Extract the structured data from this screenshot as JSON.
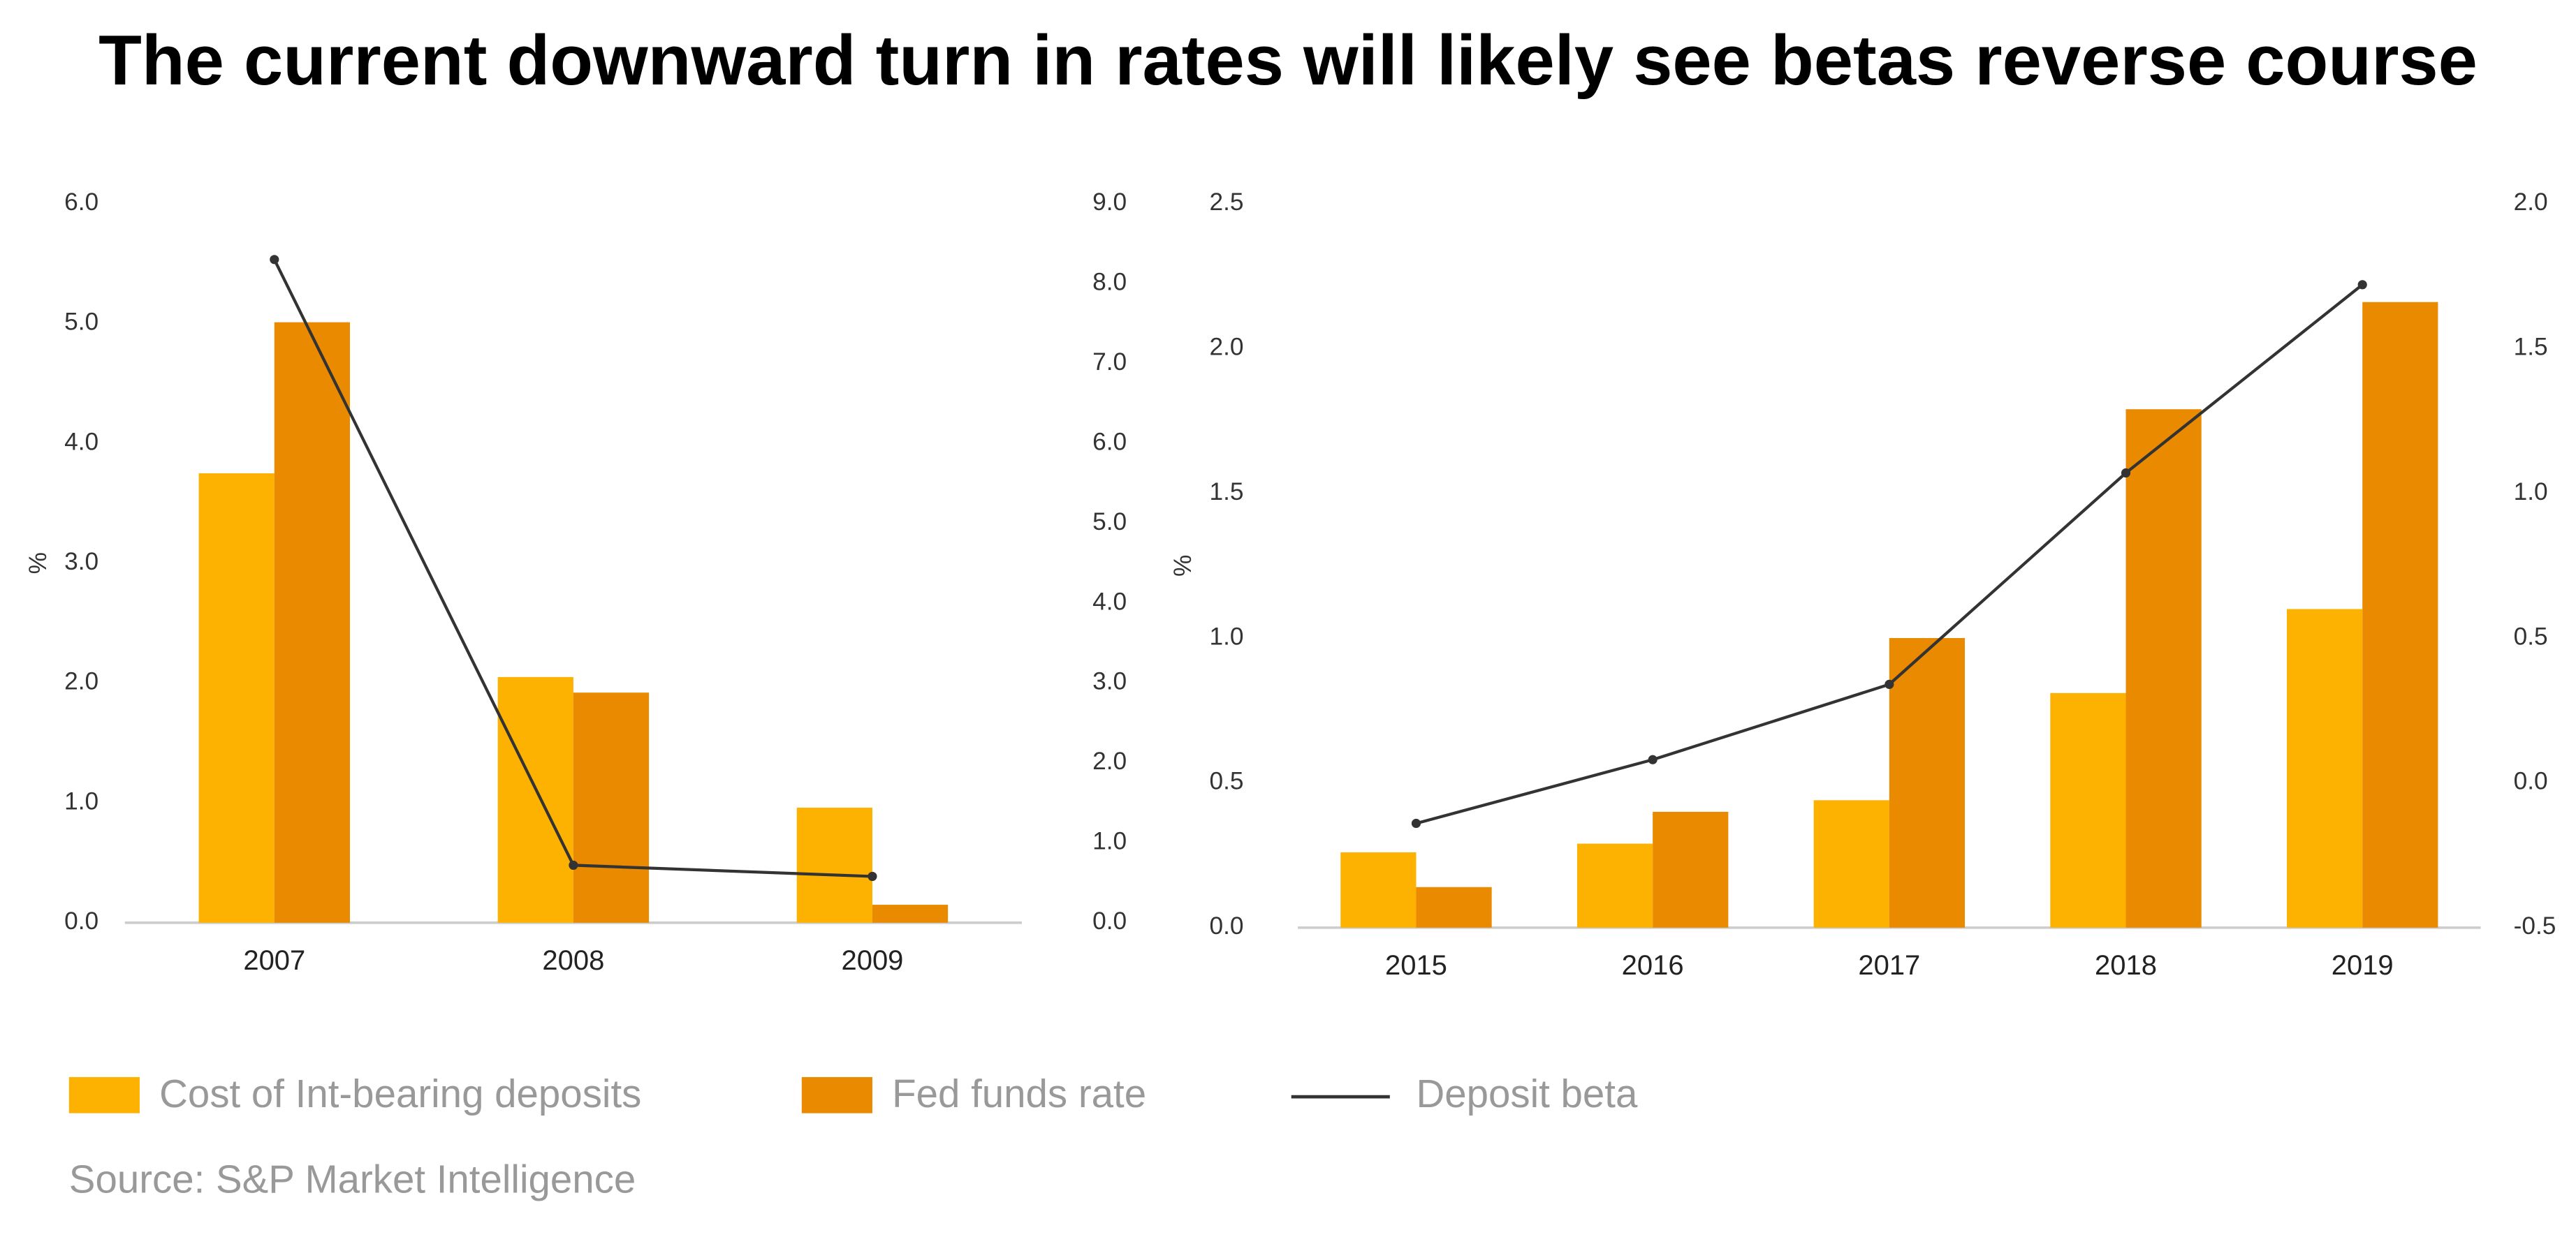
{
  "title": "The current downward turn in rates will likely see betas reverse course",
  "source": "Source: S&P Market Intelligence",
  "chart_data": [
    {
      "type": "bar-line",
      "y_label": "%",
      "categories": [
        "2007",
        "2008",
        "2009"
      ],
      "ylim": [
        0,
        6
      ],
      "yticks": [
        {
          "value": 0,
          "label": "0.0"
        },
        {
          "value": 1,
          "label": "1.0"
        },
        {
          "value": 2,
          "label": "2.0"
        },
        {
          "value": 3,
          "label": "3.0"
        },
        {
          "value": 4,
          "label": "4.0"
        },
        {
          "value": 5,
          "label": "5.0"
        },
        {
          "value": 6,
          "label": "6.0"
        }
      ],
      "y2lim": [
        0,
        9
      ],
      "y2ticks": [
        {
          "value": 0,
          "label": "0.0"
        },
        {
          "value": 1,
          "label": "1.0"
        },
        {
          "value": 2,
          "label": "2.0"
        },
        {
          "value": 3,
          "label": "3.0"
        },
        {
          "value": 4,
          "label": "4.0"
        },
        {
          "value": 5,
          "label": "5.0"
        },
        {
          "value": 6,
          "label": "6.0"
        },
        {
          "value": 7,
          "label": "7.0"
        },
        {
          "value": 8,
          "label": "8.0"
        },
        {
          "value": 9,
          "label": "9.0"
        }
      ],
      "series": [
        {
          "name": "Cost of Int-bearing deposits",
          "color": "#fdb100",
          "values": [
            3.75,
            2.05,
            0.96
          ]
        },
        {
          "name": "Fed funds rate",
          "color": "#e98a00",
          "values": [
            5.01,
            1.92,
            0.15
          ]
        },
        {
          "name": "Deposit beta",
          "color": "#333333",
          "axis": "y2",
          "values": [
            8.3,
            0.72,
            0.58
          ]
        }
      ]
    },
    {
      "type": "bar-line",
      "y_label": "%",
      "categories": [
        "2015",
        "2016",
        "2017",
        "2018",
        "2019"
      ],
      "ylim": [
        0,
        2.5
      ],
      "yticks": [
        {
          "value": 0,
          "label": "0.0"
        },
        {
          "value": 0.5,
          "label": "0.5"
        },
        {
          "value": 1,
          "label": "1.0"
        },
        {
          "value": 1.5,
          "label": "1.5"
        },
        {
          "value": 2,
          "label": "2.0"
        },
        {
          "value": 2.5,
          "label": "2.5"
        }
      ],
      "y2lim": [
        -0.5,
        2
      ],
      "y2ticks": [
        {
          "value": -0.5,
          "label": "-0.5"
        },
        {
          "value": 0,
          "label": "0.0"
        },
        {
          "value": 0.5,
          "label": "0.5"
        },
        {
          "value": 1,
          "label": "1.0"
        },
        {
          "value": 1.5,
          "label": "1.5"
        },
        {
          "value": 2,
          "label": "2.0"
        }
      ],
      "series": [
        {
          "color": "#fdb100",
          "values": [
            0.26,
            0.29,
            0.44,
            0.81,
            1.1
          ]
        },
        {
          "color": "#e98a00",
          "values": [
            0.14,
            0.4,
            1.0,
            1.79,
            2.16
          ]
        },
        {
          "color": "#333333",
          "axis": "y2",
          "values": [
            -0.14,
            0.08,
            0.34,
            1.07,
            1.72
          ]
        }
      ]
    }
  ]
}
